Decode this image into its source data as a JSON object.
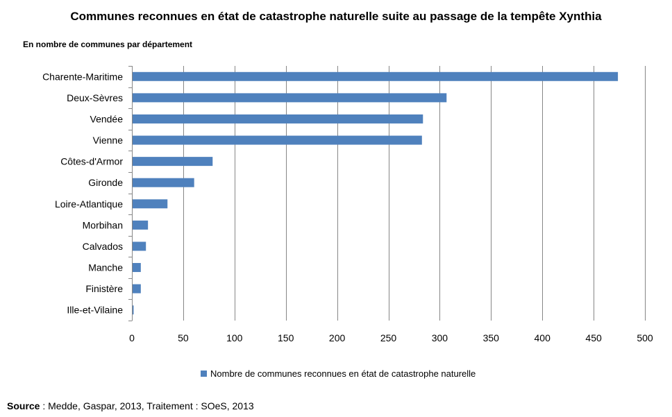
{
  "title": "Communes reconnues en état de catastrophe naturelle suite au passage de la tempête Xynthia",
  "subtitle": "En nombre de communes par département",
  "source_label": "Source",
  "source_text": " : Medde, Gaspar, 2013, Traitement : SOeS, 2013",
  "colors": {
    "bar": "#4f81bd",
    "grid": "#868686",
    "axis": "#868686"
  },
  "chart_data": {
    "type": "bar",
    "orientation": "horizontal",
    "title": "Communes reconnues en état de catastrophe naturelle suite au passage de la tempête Xynthia",
    "categories": [
      "Charente-Maritime",
      "Deux-Sèvres",
      "Vendée",
      "Vienne",
      "Côtes-d'Armor",
      "Gironde",
      "Loire-Atlantique",
      "Morbihan",
      "Calvados",
      "Manche",
      "Finistère",
      "Ille-et-Vilaine"
    ],
    "series": [
      {
        "name": "Nombre de communes reconnues en état de catastrophe naturelle",
        "values": [
          473,
          306,
          283,
          282,
          78,
          60,
          34,
          15,
          13,
          8,
          8,
          1
        ]
      }
    ],
    "xlim": [
      0,
      500
    ],
    "xticks": [
      "0",
      "50",
      "100",
      "150",
      "200",
      "250",
      "300",
      "350",
      "400",
      "450",
      "500"
    ],
    "grid": true,
    "legend_position": "bottom"
  }
}
